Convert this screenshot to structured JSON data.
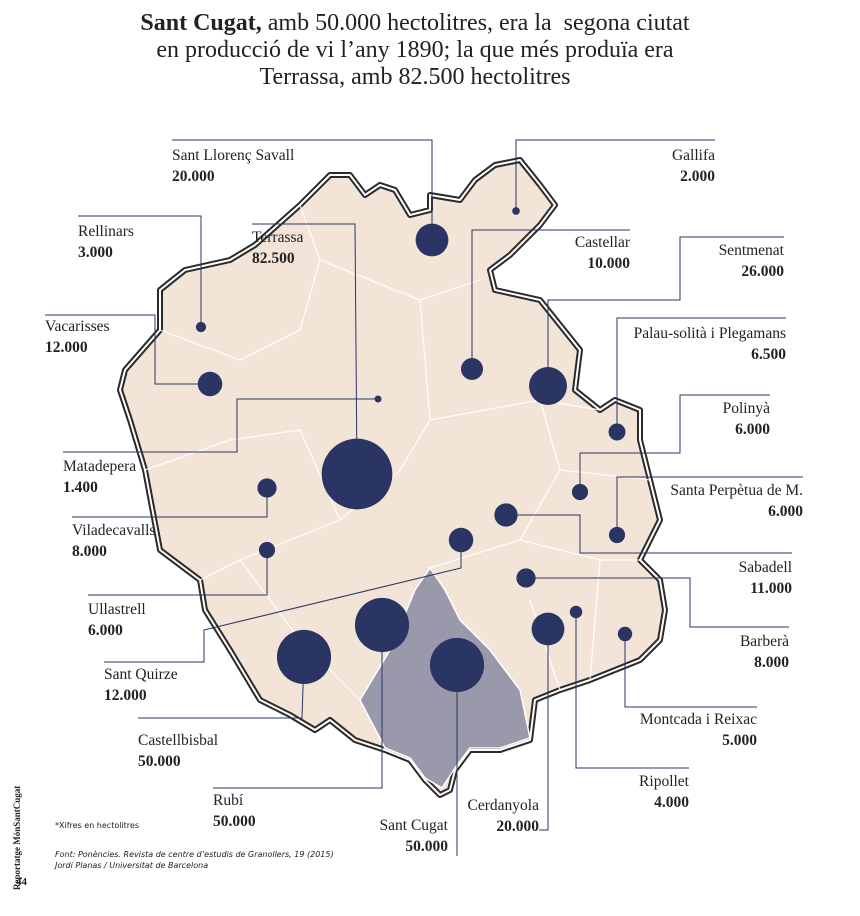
{
  "title": {
    "bold": "Sant Cugat,",
    "lines": [
      "amb 50.000 hectolitres, era la  segona ciutat",
      "en producció de vi l’any 1890; la que més produïa era",
      "Terrassa, amb 82.500 hectolitres"
    ]
  },
  "places": [
    {
      "name": "Sant Llorenç Savall",
      "value": 20000,
      "label": "20.000"
    },
    {
      "name": "Gallifa",
      "value": 2000,
      "label": "2.000"
    },
    {
      "name": "Rellinars",
      "value": 3000,
      "label": "3.000"
    },
    {
      "name": "Terrassa",
      "value": 82500,
      "label": "82.500"
    },
    {
      "name": "Castellar",
      "value": 10000,
      "label": "10.000"
    },
    {
      "name": "Sentmenat",
      "value": 26000,
      "label": "26.000"
    },
    {
      "name": "Vacarisses",
      "value": 12000,
      "label": "12.000"
    },
    {
      "name": "Palau-solità i Plegamans",
      "value": 6500,
      "label": "6.500"
    },
    {
      "name": "Polinyà",
      "value": 6000,
      "label": "6.000"
    },
    {
      "name": "Matadepera",
      "value": 1400,
      "label": "1.400"
    },
    {
      "name": "Santa Perpètua de M.",
      "value": 6000,
      "label": "6.000"
    },
    {
      "name": "Viladecavalls",
      "value": 8000,
      "label": "8.000"
    },
    {
      "name": "Sabadell",
      "value": 11000,
      "label": "11.000"
    },
    {
      "name": "Ullastrell",
      "value": 6000,
      "label": "6.000"
    },
    {
      "name": "Barberà",
      "value": 8000,
      "label": "8.000"
    },
    {
      "name": "Sant Quirze",
      "value": 12000,
      "label": "12.000"
    },
    {
      "name": "Montcada i Reixac",
      "value": 5000,
      "label": "5.000"
    },
    {
      "name": "Castellbisbal",
      "value": 50000,
      "label": "50.000"
    },
    {
      "name": "Ripollet",
      "value": 4000,
      "label": "4.000"
    },
    {
      "name": "Rubí",
      "value": 50000,
      "label": "50.000"
    },
    {
      "name": "Cerdanyola",
      "value": 20000,
      "label": "20.000"
    },
    {
      "name": "Sant Cugat",
      "value": 50000,
      "label": "50.000"
    }
  ],
  "note": "*Xifres en hectolitres",
  "source": [
    "Font: Ponències. Revista de centre d’estudis de Granollers, 19 (2015)",
    "Jordi Planas / Universitat de Barcelona"
  ],
  "sidebar": "Reportatge MónSantCugat",
  "page_number": "44"
}
